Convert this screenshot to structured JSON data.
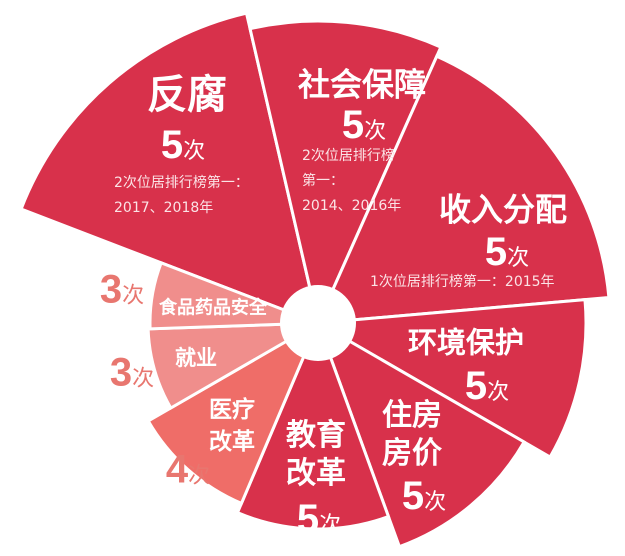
{
  "chart_data": {
    "type": "polar-area",
    "unit": "次",
    "colors": {
      "dark": "#d8314b",
      "light": "#f08e8c",
      "medium": "#ef6d68",
      "outside_label": "#e8766f"
    },
    "categories": [
      {
        "name": "反腐",
        "value": 5,
        "note": [
          "2次位居排行榜第一：",
          "2017、2018年"
        ]
      },
      {
        "name": "社会保障",
        "value": 5,
        "note": [
          "2次位居排行榜",
          "第一：",
          "2014、2016年"
        ]
      },
      {
        "name": "收入分配",
        "value": 5,
        "note": [
          "1次位居排行榜第一：2015年"
        ]
      },
      {
        "name": "环境保护",
        "value": 5
      },
      {
        "name": "住房房价",
        "lines": [
          "住房",
          "房价"
        ],
        "value": 5
      },
      {
        "name": "教育改革",
        "lines": [
          "教育",
          "改革"
        ],
        "value": 5
      },
      {
        "name": "医疗改革",
        "lines": [
          "医疗",
          "改革"
        ],
        "value": 4
      },
      {
        "name": "就业",
        "value": 3
      },
      {
        "name": "食品药品安全",
        "value": 3
      }
    ]
  }
}
